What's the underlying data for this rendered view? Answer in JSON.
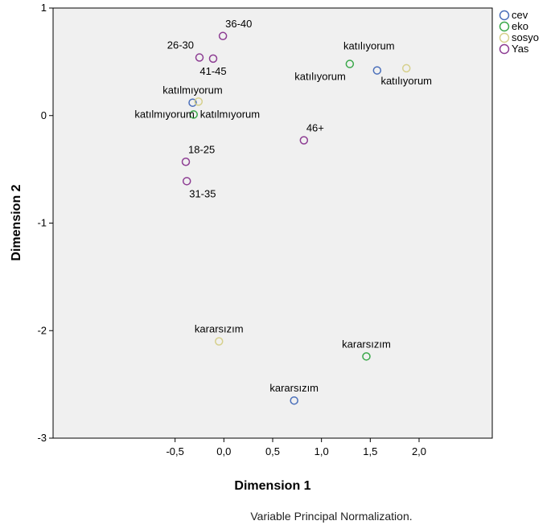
{
  "chart_data": {
    "type": "scatter",
    "xlabel": "Dimension 1",
    "ylabel": "Dimension 2",
    "footnote": "Variable Principal Normalization.",
    "xlim": [
      -1.75,
      2.75
    ],
    "ylim": [
      -3,
      1
    ],
    "xticks": [
      {
        "value": -0.5,
        "label": "-0,5"
      },
      {
        "value": 0.0,
        "label": "0,0"
      },
      {
        "value": 0.5,
        "label": "0,5"
      },
      {
        "value": 1.0,
        "label": "1,0"
      },
      {
        "value": 1.5,
        "label": "1,5"
      },
      {
        "value": 2.0,
        "label": "2,0"
      }
    ],
    "yticks": [
      {
        "value": 1,
        "label": "1"
      },
      {
        "value": 0,
        "label": "0"
      },
      {
        "value": -1,
        "label": "-1"
      },
      {
        "value": -2,
        "label": "-2"
      },
      {
        "value": -3,
        "label": "-3"
      }
    ],
    "grid": false,
    "legend_position": "outside top-right",
    "series": [
      {
        "name": "cev",
        "color": "#4a6fba",
        "points": [
          {
            "x": 1.57,
            "y": 0.42,
            "label": "katılıyorum",
            "label_pos": "none"
          },
          {
            "x": -0.32,
            "y": 0.12,
            "label": "katılmıyorum",
            "label_pos": "above"
          },
          {
            "x": 0.72,
            "y": -2.65,
            "label": "kararsızım",
            "label_pos": "above"
          }
        ]
      },
      {
        "name": "eko",
        "color": "#3aa84a",
        "points": [
          {
            "x": 1.29,
            "y": 0.48,
            "label": "katılıyorum",
            "label_pos": "below-left"
          },
          {
            "x": -0.31,
            "y": 0.01,
            "label": "katılmıyorum",
            "label_pos": "right"
          },
          {
            "x": 1.46,
            "y": -2.24,
            "label": "kararsızım",
            "label_pos": "above"
          }
        ]
      },
      {
        "name": "sosyo",
        "color": "#d6d08c",
        "points": [
          {
            "x": 1.87,
            "y": 0.44,
            "label": "katılıyorum",
            "label_pos": "below"
          },
          {
            "x": -0.26,
            "y": 0.13,
            "label": "katılmıyorum",
            "label_pos": "below-left"
          },
          {
            "x": -0.05,
            "y": -2.1,
            "label": "kararsızım",
            "label_pos": "above"
          }
        ]
      },
      {
        "name": "Yas",
        "color": "#8d3d93",
        "points": [
          {
            "x": -0.25,
            "y": 0.54,
            "label": "26-30",
            "label_pos": "above-left"
          },
          {
            "x": -0.01,
            "y": 0.74,
            "label": "36-40",
            "label_pos": "above-right"
          },
          {
            "x": -0.11,
            "y": 0.53,
            "label": "41-45",
            "label_pos": "below"
          },
          {
            "x": 0.82,
            "y": -0.23,
            "label": "46+",
            "label_pos": "above-right"
          },
          {
            "x": -0.39,
            "y": -0.43,
            "label": "18-25",
            "label_pos": "above-right"
          },
          {
            "x": -0.38,
            "y": -0.61,
            "label": "31-35",
            "label_pos": "below-right"
          }
        ]
      }
    ]
  }
}
